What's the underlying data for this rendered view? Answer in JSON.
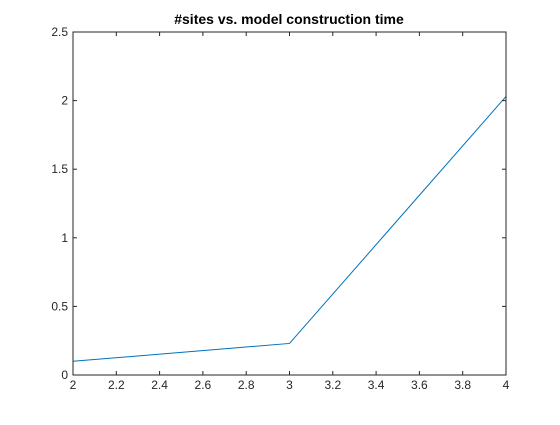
{
  "chart_data": {
    "type": "line",
    "title": "#sites vs. model construction time",
    "xlabel": "",
    "ylabel": "",
    "xlim": [
      2,
      4
    ],
    "ylim": [
      0,
      2.5
    ],
    "xticks": [
      2,
      2.2,
      2.4,
      2.6,
      2.8,
      3,
      3.2,
      3.4,
      3.6,
      3.8,
      4
    ],
    "xtick_labels": [
      "2",
      "2.2",
      "2.4",
      "2.6",
      "2.8",
      "3",
      "3.2",
      "3.4",
      "3.6",
      "3.8",
      "4"
    ],
    "yticks": [
      0,
      0.5,
      1,
      1.5,
      2,
      2.5
    ],
    "ytick_labels": [
      "0",
      "0.5",
      "1",
      "1.5",
      "2",
      "2.5"
    ],
    "grid": false,
    "series": [
      {
        "color": "#0072BD",
        "x": [
          2,
          3,
          4
        ],
        "y": [
          0.1,
          0.23,
          2.03
        ]
      }
    ]
  }
}
